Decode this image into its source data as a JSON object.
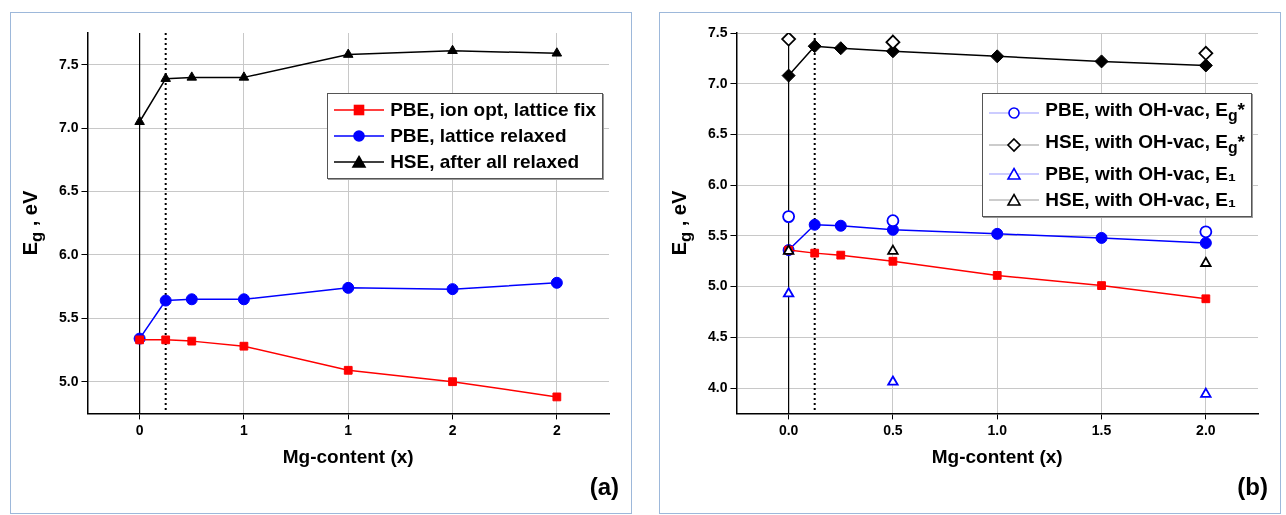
{
  "chart_data": [
    {
      "type": "line",
      "xlabel": "Mg-content (x)",
      "ylabel": "E$_{g}$ , eV",
      "x": [
        0,
        0.125,
        0.25,
        0.5,
        1.0,
        1.5,
        2.0
      ],
      "xlim": [
        -0.25,
        2.25
      ],
      "xticks": [
        0,
        {
          "value": 0.5,
          "label": "1"
        },
        {
          "value": 1.0,
          "label": "1"
        },
        {
          "value": 1.5,
          "label": "2"
        },
        {
          "value": 2.0,
          "label": "2"
        }
      ],
      "ylim": [
        4.75,
        7.75
      ],
      "yticks": [
        {
          "value": 5.0,
          "label": "5.0"
        },
        5.5,
        {
          "value": 6.0,
          "label": "6.0"
        },
        6.5,
        {
          "value": 7.0,
          "label": "7.0"
        },
        7.5
      ],
      "grid": true,
      "legend": "top right",
      "ref_lines": [
        {
          "axis": "x",
          "value": 0,
          "color": "#000000",
          "line_style": "solid"
        },
        {
          "axis": "x",
          "value": 0.125,
          "color": "#000000",
          "line_style": "dotted"
        }
      ],
      "annotations": [
        "(a)"
      ],
      "series": [
        {
          "name": "PBE, ion opt, lattice fix",
          "color": "#ff0000",
          "marker": "square",
          "values": [
            5.33,
            5.33,
            5.32,
            5.28,
            5.09,
            5.0,
            4.88
          ]
        },
        {
          "name": "PBE, lattice relaxed",
          "color": "#0000ff",
          "marker": "circle",
          "values": [
            5.34,
            5.64,
            5.65,
            5.65,
            5.74,
            5.73,
            5.78
          ]
        },
        {
          "name": "HSE, after all relaxed",
          "color": "#000000",
          "marker": "triangle",
          "values": [
            7.05,
            7.39,
            7.4,
            7.4,
            7.58,
            7.61,
            7.59
          ]
        }
      ]
    },
    {
      "type": "line",
      "xlabel": "Mg-content (x)",
      "ylabel": "E$_{g}$ , eV",
      "x": [
        0,
        0.125,
        0.25,
        0.5,
        1.0,
        1.5,
        2.0
      ],
      "xlim": [
        -0.25,
        2.25
      ],
      "xticks": [
        {
          "value": 0,
          "label": "0.0"
        },
        0.5,
        {
          "value": 1.0,
          "label": "1.0"
        },
        1.5,
        {
          "value": 2.0,
          "label": "2.0"
        }
      ],
      "ylim": [
        3.75,
        7.5
      ],
      "yticks": [
        {
          "value": 4.0,
          "label": "4.0"
        },
        4.5,
        {
          "value": 5.0,
          "label": "5.0"
        },
        5.5,
        {
          "value": 6.0,
          "label": "6.0"
        },
        6.5,
        {
          "value": 7.0,
          "label": "7.0"
        },
        7.5
      ],
      "grid": true,
      "legend": "top right",
      "ref_lines": [
        {
          "axis": "x",
          "value": 0,
          "color": "#000000",
          "line_style": "solid"
        },
        {
          "axis": "x",
          "value": 0.125,
          "color": "#000000",
          "line_style": "dotted"
        }
      ],
      "annotations": [
        "(b)"
      ],
      "series": [
        {
          "color": "#ff0000",
          "marker": "square",
          "values": [
            5.36,
            5.33,
            5.31,
            5.25,
            5.11,
            5.01,
            4.88
          ]
        },
        {
          "color": "#0000ff",
          "marker": "circle",
          "values": [
            5.36,
            5.61,
            5.6,
            5.56,
            5.52,
            5.48,
            5.43
          ]
        },
        {
          "color": "#000000",
          "marker": "diamond",
          "values": [
            7.08,
            7.37,
            7.35,
            7.32,
            7.27,
            7.22,
            7.18
          ]
        },
        {
          "name": "PBE, with OH-vac, E$_{g}$*",
          "type": "scatter",
          "color": "#0000ff",
          "marker": "circle",
          "x": [
            0,
            0.5,
            2.0
          ],
          "values": [
            5.69,
            5.65,
            5.54
          ]
        },
        {
          "name": "HSE, with OH-vac, E$_{g}$*",
          "type": "scatter",
          "color": "#000000",
          "marker": "diamond",
          "x": [
            0,
            0.5,
            2.0
          ],
          "values": [
            7.44,
            7.41,
            7.3
          ]
        },
        {
          "name": "PBE, with OH-vac, E₁",
          "type": "scatter",
          "color": "#0000ff",
          "marker": "triangle",
          "x": [
            0,
            0.5,
            2.0
          ],
          "values": [
            4.93,
            4.06,
            3.94
          ]
        },
        {
          "name": "HSE, with OH-vac, E₁",
          "type": "scatter",
          "color": "#000000",
          "marker": "triangle",
          "x": [
            0,
            0.5,
            2.0
          ],
          "values": [
            5.35,
            5.35,
            5.23
          ]
        }
      ]
    }
  ]
}
